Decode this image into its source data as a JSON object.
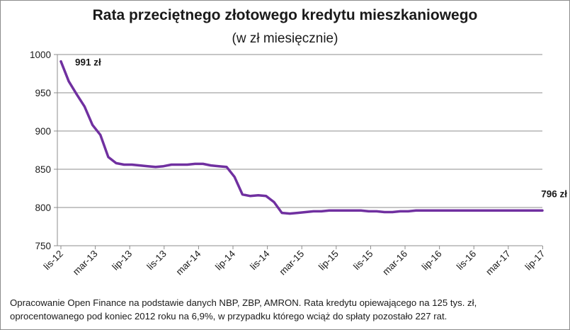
{
  "chart_data": {
    "type": "line",
    "title": "Rata przeciętnego złotowego kredytu mieszkaniowego",
    "subtitle": "(w zł miesięcznie)",
    "ylim": [
      750,
      1000
    ],
    "y_ticks": [
      750,
      800,
      850,
      900,
      950,
      1000
    ],
    "grid": true,
    "x_tick_labels": [
      "lis-12",
      "mar-13",
      "lip-13",
      "lis-13",
      "mar-14",
      "lip-14",
      "lis-14",
      "mar-15",
      "lip-15",
      "lis-15",
      "mar-16",
      "lip-16",
      "lis-16",
      "mar-17",
      "lip-17"
    ],
    "series": [
      {
        "name": "Rata",
        "color": "#7030a0",
        "values": [
          991,
          965,
          948,
          932,
          908,
          895,
          866,
          858,
          856,
          856,
          855,
          854,
          853,
          854,
          856,
          856,
          856,
          857,
          857,
          855,
          854,
          853,
          840,
          817,
          815,
          816,
          815,
          807,
          793,
          792,
          793,
          794,
          795,
          795,
          796,
          796,
          796,
          796,
          796,
          795,
          795,
          794,
          794,
          795,
          795,
          796,
          796,
          796,
          796,
          796,
          796,
          796,
          796,
          796,
          796,
          796,
          796,
          796,
          796,
          796,
          796,
          796
        ]
      }
    ],
    "annotations": [
      {
        "text": "991 zł",
        "point_index": 0
      },
      {
        "text": "796 zł",
        "point_index": 61
      }
    ]
  },
  "footer": {
    "source_line1": "Opracowanie Open Finance na podstawie danych NBP, ZBP, AMRON. Rata kredytu opiewającego na 125 tys. zł,",
    "source_line2": "oprocentowanego pod koniec 2012 roku na 6,9%, w przypadku którego wciąż do spłaty pozostało 227 rat."
  }
}
